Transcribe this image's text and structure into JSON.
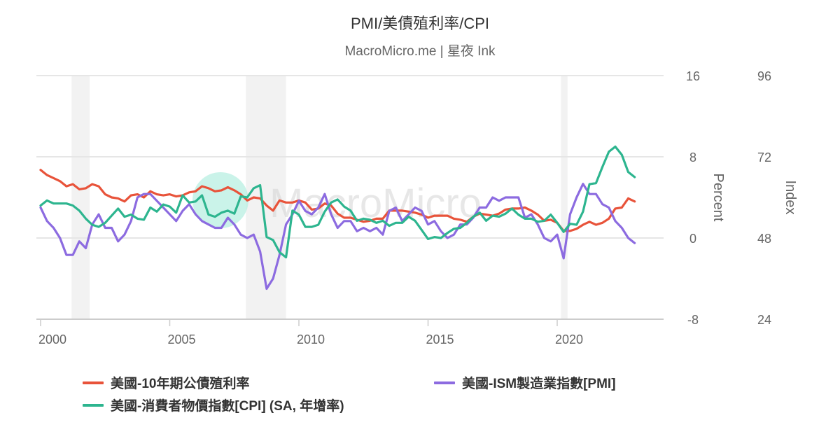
{
  "header": {
    "title": "PMI/美債殖利率/CPI",
    "subtitle": "MacroMicro.me | 星夜 Ink"
  },
  "watermark": {
    "text": "MacroMicro",
    "circle_color": "#b8efe2"
  },
  "chart_data": {
    "type": "line",
    "title": "PMI/美債殖利率/CPI",
    "subtitle": "MacroMicro.me | 星夜 Ink",
    "x_start": 2000.0,
    "x_step": 0.25,
    "xlim": [
      2000.0,
      2023.25
    ],
    "x_ticks": [
      "2000",
      "2005",
      "2010",
      "2015",
      "2020"
    ],
    "x_tick_values": [
      2000,
      2005,
      2010,
      2015,
      2020
    ],
    "y_left": {
      "label": "Percent",
      "ticks": [
        "16",
        "8",
        "0",
        "-8"
      ],
      "tick_values": [
        16,
        8,
        0,
        -8
      ],
      "range": [
        -8,
        16
      ]
    },
    "y_right": {
      "label": "Index",
      "ticks": [
        "96",
        "72",
        "48",
        "24"
      ],
      "tick_values": [
        96,
        72,
        48,
        24
      ],
      "range": [
        24,
        96
      ]
    },
    "grid": true,
    "legend_position": "bottom",
    "recessions": [
      [
        2001.2,
        2001.9
      ],
      [
        2007.95,
        2009.5
      ],
      [
        2020.15,
        2020.4
      ]
    ],
    "series": [
      {
        "name": "美國-10年期公債殖利率",
        "axis": "left",
        "color": "#e8533a",
        "values": [
          6.7,
          6.2,
          5.9,
          5.6,
          5.1,
          5.3,
          4.8,
          4.9,
          5.3,
          5.1,
          4.3,
          4.0,
          3.9,
          3.6,
          4.2,
          4.3,
          4.0,
          4.6,
          4.3,
          4.2,
          4.3,
          4.1,
          4.2,
          4.5,
          4.6,
          5.1,
          4.9,
          4.6,
          4.7,
          5.0,
          4.7,
          4.3,
          3.7,
          4.0,
          3.9,
          3.2,
          2.7,
          3.7,
          3.5,
          3.5,
          3.7,
          3.5,
          2.8,
          2.9,
          3.4,
          3.2,
          2.4,
          2.0,
          2.0,
          1.8,
          1.6,
          1.7,
          1.9,
          1.9,
          2.7,
          2.7,
          2.7,
          2.6,
          2.5,
          2.3,
          2.0,
          2.2,
          2.2,
          2.2,
          1.9,
          1.8,
          1.6,
          2.1,
          2.4,
          2.3,
          2.2,
          2.4,
          2.8,
          2.9,
          2.9,
          3.0,
          2.7,
          2.3,
          1.7,
          1.8,
          1.5,
          0.7,
          0.7,
          0.9,
          1.3,
          1.6,
          1.3,
          1.5,
          1.9,
          2.9,
          3.0,
          3.9,
          3.6
        ]
      },
      {
        "name": "美國-ISM製造業指數[PMI]",
        "axis": "right",
        "color": "#8c6be0",
        "values": [
          57,
          53,
          51,
          48,
          43,
          43,
          47,
          45,
          52,
          55,
          51,
          51,
          47,
          49,
          53,
          60,
          61,
          61,
          59,
          57,
          55,
          53,
          56,
          58,
          55,
          53,
          52,
          51,
          51,
          54,
          52,
          49,
          48,
          49,
          44,
          33,
          36,
          43,
          52,
          55,
          59,
          56,
          55,
          57,
          61,
          55,
          51,
          53,
          53,
          50,
          51,
          50,
          51,
          49,
          56,
          57,
          53,
          55,
          57,
          56,
          52,
          53,
          50,
          48,
          49,
          52,
          52,
          54,
          57,
          57,
          60,
          59,
          60,
          60,
          60,
          54,
          55,
          52,
          48,
          47,
          49,
          42,
          55,
          60,
          64,
          61,
          61,
          58,
          57,
          53,
          51,
          48,
          46.5
        ]
      },
      {
        "name": "美國-消費者物價指數[CPI] (SA, 年增率)",
        "axis": "left",
        "color": "#2db58f",
        "values": [
          3.2,
          3.7,
          3.4,
          3.4,
          3.4,
          3.2,
          2.7,
          1.9,
          1.3,
          1.1,
          1.5,
          2.2,
          2.9,
          2.1,
          2.3,
          1.9,
          1.8,
          3.0,
          2.6,
          3.3,
          3.1,
          2.5,
          4.2,
          3.5,
          3.6,
          4.2,
          2.3,
          2.1,
          2.5,
          2.7,
          2.4,
          4.1,
          4.0,
          4.9,
          5.2,
          0.1,
          -0.2,
          -1.4,
          -1.9,
          2.7,
          2.3,
          1.1,
          1.1,
          1.3,
          2.6,
          3.5,
          3.8,
          3.1,
          2.7,
          1.7,
          1.9,
          1.8,
          1.5,
          1.7,
          1.2,
          1.5,
          1.5,
          2.1,
          1.7,
          0.8,
          -0.1,
          0.1,
          0.0,
          0.5,
          0.9,
          1.0,
          1.5,
          2.1,
          2.5,
          1.7,
          2.2,
          2.1,
          2.4,
          2.9,
          2.3,
          1.9,
          1.9,
          1.6,
          1.7,
          2.3,
          1.5,
          0.6,
          1.4,
          1.3,
          2.6,
          5.3,
          5.4,
          7.0,
          8.5,
          9.0,
          8.2,
          6.5,
          6.0
        ]
      }
    ]
  },
  "legend": [
    {
      "label": "美國-10年期公債殖利率",
      "color": "#e8533a"
    },
    {
      "label": "美國-ISM製造業指數[PMI]",
      "color": "#8c6be0"
    },
    {
      "label": "美國-消費者物價指數[CPI] (SA, 年增率)",
      "color": "#2db58f"
    }
  ]
}
